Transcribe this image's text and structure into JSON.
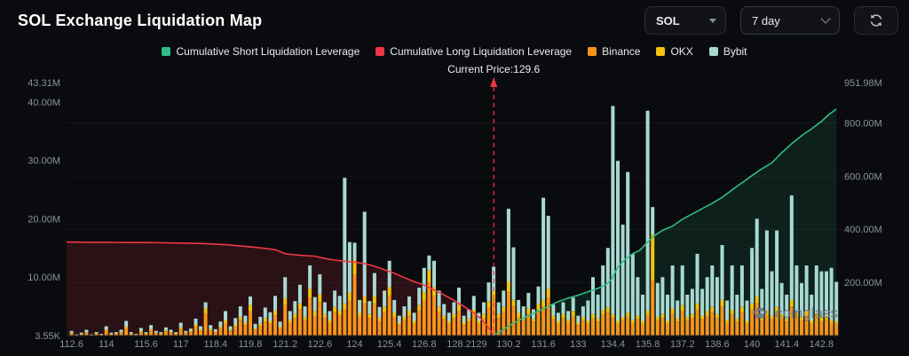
{
  "header": {
    "title": "SOL Exchange Liquidation Map",
    "symbol_select": {
      "value": "SOL"
    },
    "range_select": {
      "value": "7 day"
    }
  },
  "icons": {
    "symbol_select_caret": "chevron-down-icon",
    "range_select_caret": "chevron-down-icon",
    "refresh": "refresh-icon",
    "watermark": "paw-icon",
    "current_price_marker": "arrow-up-icon"
  },
  "legend": {
    "items": [
      {
        "label": "Cumulative Short Liquidation Leverage",
        "color": "#2ebd85"
      },
      {
        "label": "Cumulative Long Liquidation Leverage",
        "color": "#f23645"
      },
      {
        "label": "Binance",
        "color": "#f7931a"
      },
      {
        "label": "OKX",
        "color": "#f2c20e"
      },
      {
        "label": "Bybit",
        "color": "#a7d9d2"
      }
    ]
  },
  "watermark": {
    "text": "coinglass"
  },
  "chart_data": {
    "type": "bar",
    "title": "SOL Exchange Liquidation Map",
    "current_price": 129.6,
    "current_price_label": "Current Price:129.6",
    "current_price_color": "#f23645",
    "x_axis": {
      "min": 112.4,
      "max": 143.5,
      "tick_labels": [
        "112.6",
        "114",
        "115.6",
        "117",
        "118.4",
        "119.8",
        "121.2",
        "122.6",
        "124",
        "125.4",
        "126.8",
        "128.2",
        "129",
        "130.2",
        "131.6",
        "133",
        "134.4",
        "135.8",
        "137.2",
        "138.6",
        "140",
        "141.4",
        "142.8"
      ],
      "tick_values": [
        112.6,
        114,
        115.6,
        117,
        118.4,
        119.8,
        121.2,
        122.6,
        124,
        125.4,
        126.8,
        128.2,
        129,
        130.2,
        131.6,
        133,
        134.4,
        135.8,
        137.2,
        138.6,
        140,
        141.4,
        142.8
      ]
    },
    "left_axis": {
      "max": 43.31,
      "unit": "M",
      "ticks": [
        {
          "label": "43.31M",
          "value": 43.31
        },
        {
          "label": "40.00M",
          "value": 40
        },
        {
          "label": "30.00M",
          "value": 30
        },
        {
          "label": "20.00M",
          "value": 20
        },
        {
          "label": "10.00M",
          "value": 10
        },
        {
          "label": "3.55K",
          "value": 0
        }
      ]
    },
    "right_axis": {
      "max": 951.98,
      "unit": "M",
      "ticks": [
        {
          "label": "951.98M",
          "value": 951.98
        },
        {
          "label": "800.00M",
          "value": 800
        },
        {
          "label": "600.00M",
          "value": 600
        },
        {
          "label": "400.00M",
          "value": 400
        },
        {
          "label": "200.00M",
          "value": 200
        }
      ]
    },
    "bars": {
      "axis": "left",
      "unit": "M",
      "price_start": 112.6,
      "price_step": 0.2,
      "series": [
        {
          "name": "Binance",
          "color": "#f7931a",
          "values": [
            0.4,
            0.1,
            0.2,
            0.5,
            0.1,
            0.3,
            0.2,
            0.8,
            0.2,
            0.3,
            0.5,
            1.2,
            0.3,
            0.2,
            0.6,
            0.3,
            0.9,
            0.4,
            0.3,
            0.7,
            0.5,
            0.3,
            1.1,
            0.4,
            0.6,
            1.5,
            0.8,
            3.8,
            0.9,
            0.6,
            1.2,
            2.2,
            0.8,
            1.5,
            2.6,
            1.8,
            4.2,
            1.0,
            1.6,
            2.4,
            2.0,
            3.5,
            1.2,
            5.2,
            2.2,
            3.0,
            4.5,
            2.6,
            6.5,
            3.4,
            5.8,
            3.0,
            2.2,
            4.0,
            3.5,
            4.5,
            6.0,
            10.5,
            3.2,
            5.5,
            3.0,
            5.5,
            2.5,
            4.0,
            6.8,
            3.2,
            1.8,
            2.6,
            3.5,
            2.0,
            4.2,
            6.0,
            9.2,
            6.8,
            4.0,
            2.8,
            2.0,
            3.0,
            4.2,
            1.8,
            2.4,
            3.6,
            2.0,
            3.0,
            4.8,
            6.2,
            3.0,
            4.0,
            7.5,
            5.0,
            3.2,
            2.6,
            3.8,
            2.4,
            4.4,
            5.0,
            6.5,
            2.8,
            2.0,
            3.0,
            2.2,
            3.4,
            1.8,
            2.6,
            2.0,
            3.0,
            2.4,
            3.6,
            4.0,
            3.0,
            2.0,
            2.6,
            3.2,
            2.2,
            2.8,
            2.0,
            3.5,
            9.5,
            2.6,
            3.0,
            2.0,
            3.8,
            2.4,
            4.2,
            2.6,
            3.0,
            4.5,
            2.8,
            3.4,
            4.0,
            3.0,
            5.0,
            2.2,
            3.6,
            2.4,
            4.0,
            2.0,
            4.5,
            5.5,
            2.6,
            3.5,
            2.8,
            4.0,
            3.0,
            2.4,
            5.0,
            3.2,
            2.6,
            3.5,
            2.0,
            3.0,
            2.5,
            2.8,
            2.2,
            2.0
          ]
        },
        {
          "name": "OKX",
          "color": "#f2c20e",
          "values": [
            0.1,
            0.0,
            0.1,
            0.1,
            0.0,
            0.1,
            0.0,
            0.2,
            0.1,
            0.1,
            0.1,
            0.3,
            0.1,
            0.0,
            0.2,
            0.1,
            0.2,
            0.1,
            0.1,
            0.2,
            0.1,
            0.1,
            0.3,
            0.1,
            0.2,
            0.4,
            0.2,
            0.9,
            0.2,
            0.1,
            0.3,
            0.5,
            0.2,
            0.4,
            0.6,
            0.4,
            1.0,
            0.2,
            0.4,
            0.6,
            0.5,
            0.8,
            0.3,
            1.2,
            0.5,
            0.7,
            1.0,
            0.6,
            1.5,
            0.8,
            1.3,
            0.7,
            0.5,
            0.9,
            0.8,
            1.0,
            1.4,
            2.4,
            0.7,
            1.2,
            0.7,
            1.2,
            0.6,
            0.9,
            1.5,
            0.7,
            0.4,
            0.6,
            0.8,
            0.5,
            1.0,
            1.4,
            2.0,
            1.5,
            0.9,
            0.6,
            0.5,
            0.7,
            1.0,
            0.4,
            0.5,
            0.8,
            0.5,
            0.7,
            1.1,
            1.4,
            0.7,
            0.9,
            1.7,
            1.1,
            0.7,
            0.6,
            0.9,
            0.5,
            1.0,
            1.1,
            1.5,
            0.6,
            0.5,
            0.7,
            0.5,
            0.8,
            0.4,
            0.6,
            0.5,
            0.7,
            0.5,
            0.8,
            0.9,
            0.7,
            0.5,
            0.6,
            0.7,
            0.5,
            0.6,
            0.5,
            0.8,
            7.8,
            0.6,
            0.7,
            0.5,
            0.9,
            0.5,
            1.0,
            0.6,
            0.7,
            1.0,
            0.6,
            0.8,
            0.9,
            0.7,
            1.1,
            0.5,
            0.8,
            0.5,
            0.9,
            0.5,
            1.0,
            1.2,
            0.6,
            0.8,
            0.6,
            0.9,
            0.7,
            0.5,
            1.1,
            0.7,
            0.6,
            0.8,
            0.5,
            0.7,
            0.6,
            0.6,
            0.5,
            0.4
          ]
        },
        {
          "name": "Bybit",
          "color": "#a7d9d2",
          "values": [
            0.3,
            0.1,
            0.2,
            0.4,
            0.1,
            0.2,
            0.1,
            0.6,
            0.2,
            0.2,
            0.4,
            1.0,
            0.2,
            0.1,
            0.5,
            0.2,
            0.7,
            0.3,
            0.2,
            0.5,
            0.4,
            0.2,
            0.8,
            0.3,
            0.4,
            1.0,
            0.6,
            1.0,
            0.7,
            0.4,
            0.9,
            1.5,
            0.6,
            1.1,
            1.8,
            1.2,
            1.5,
            0.8,
            1.2,
            1.8,
            1.5,
            2.5,
            0.9,
            3.6,
            1.5,
            2.2,
            3.2,
            1.8,
            4.0,
            2.4,
            3.4,
            2.0,
            1.5,
            2.8,
            2.5,
            21.5,
            8.6,
            3.0,
            2.2,
            14.5,
            2.2,
            4.0,
            1.8,
            2.8,
            4.5,
            2.2,
            1.2,
            1.8,
            2.4,
            1.4,
            3.0,
            4.2,
            2.5,
            4.5,
            2.8,
            2.0,
            1.4,
            2.0,
            3.0,
            1.2,
            1.6,
            2.4,
            1.4,
            2.0,
            3.2,
            4.2,
            2.0,
            2.8,
            12.5,
            9.0,
            2.2,
            1.8,
            2.6,
            1.6,
            3.0,
            17.5,
            12.5,
            1.9,
            1.4,
            2.0,
            1.5,
            2.3,
            1.2,
            1.8,
            3.5,
            6.3,
            4.1,
            7.6,
            10.1,
            35.6,
            27.4,
            15.8,
            24.1,
            11.3,
            6.6,
            4.5,
            34.2,
            4.7,
            5.8,
            6.3,
            4.5,
            7.3,
            3.1,
            6.8,
            3.8,
            4.3,
            8.5,
            4.6,
            5.8,
            7.1,
            6.3,
            9.4,
            3.3,
            7.6,
            4.1,
            7.1,
            3.5,
            9.5,
            13.3,
            4.8,
            13.7,
            7.6,
            13.1,
            5.3,
            4.1,
            17.9,
            8.1,
            5.8,
            7.7,
            4.5,
            8.3,
            7.9,
            7.6,
            8.9,
            6.8
          ]
        }
      ]
    },
    "lines": [
      {
        "name": "Cumulative Long Liquidation Leverage",
        "name_slug": "cumulative-long-line",
        "axis": "right",
        "unit": "M",
        "color": "#f23645",
        "fill": "rgba(242,54,69,0.14)",
        "points": [
          [
            112.4,
            352
          ],
          [
            113.2,
            351
          ],
          [
            114.0,
            351
          ],
          [
            114.8,
            350
          ],
          [
            115.6,
            350
          ],
          [
            116.4,
            349
          ],
          [
            117.0,
            348
          ],
          [
            117.6,
            347
          ],
          [
            118.2,
            345
          ],
          [
            118.8,
            342
          ],
          [
            119.4,
            337
          ],
          [
            119.9,
            333
          ],
          [
            120.4,
            328
          ],
          [
            120.8,
            323
          ],
          [
            121.0,
            316
          ],
          [
            121.2,
            308
          ],
          [
            121.6,
            304
          ],
          [
            122.0,
            301
          ],
          [
            122.4,
            299
          ],
          [
            122.8,
            290
          ],
          [
            123.2,
            284
          ],
          [
            123.6,
            280
          ],
          [
            124.0,
            276
          ],
          [
            124.4,
            271
          ],
          [
            124.8,
            261
          ],
          [
            125.2,
            248
          ],
          [
            125.6,
            234
          ],
          [
            126.0,
            218
          ],
          [
            126.4,
            203
          ],
          [
            126.8,
            190
          ],
          [
            127.2,
            172
          ],
          [
            127.6,
            153
          ],
          [
            128.0,
            133
          ],
          [
            128.4,
            110
          ],
          [
            128.8,
            86
          ],
          [
            129.1,
            62
          ],
          [
            129.35,
            34
          ],
          [
            129.55,
            8
          ],
          [
            129.6,
            2
          ]
        ]
      },
      {
        "name": "Cumulative Short Liquidation Leverage",
        "name_slug": "cumulative-short-line",
        "axis": "right",
        "unit": "M",
        "color": "#2ebd85",
        "fill": "rgba(46,189,133,0.12)",
        "points": [
          [
            129.6,
            2
          ],
          [
            129.9,
            16
          ],
          [
            130.2,
            36
          ],
          [
            130.6,
            57
          ],
          [
            131.0,
            75
          ],
          [
            131.4,
            92
          ],
          [
            131.8,
            110
          ],
          [
            132.2,
            128
          ],
          [
            132.6,
            141
          ],
          [
            133.0,
            152
          ],
          [
            133.4,
            165
          ],
          [
            133.8,
            178
          ],
          [
            134.1,
            190
          ],
          [
            134.35,
            212
          ],
          [
            134.6,
            258
          ],
          [
            134.9,
            288
          ],
          [
            135.2,
            308
          ],
          [
            135.5,
            322
          ],
          [
            135.8,
            352
          ],
          [
            136.1,
            378
          ],
          [
            136.4,
            396
          ],
          [
            136.8,
            412
          ],
          [
            137.2,
            438
          ],
          [
            137.6,
            458
          ],
          [
            138.0,
            478
          ],
          [
            138.4,
            498
          ],
          [
            138.8,
            520
          ],
          [
            139.2,
            548
          ],
          [
            139.6,
            575
          ],
          [
            140.0,
            602
          ],
          [
            140.4,
            628
          ],
          [
            140.8,
            650
          ],
          [
            141.2,
            688
          ],
          [
            141.6,
            722
          ],
          [
            142.0,
            752
          ],
          [
            142.4,
            778
          ],
          [
            142.8,
            806
          ],
          [
            143.1,
            832
          ],
          [
            143.4,
            852
          ]
        ]
      }
    ]
  }
}
